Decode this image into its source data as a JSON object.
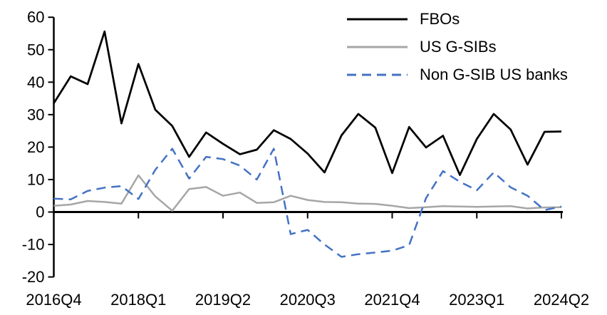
{
  "chart_data": {
    "type": "line",
    "title": "",
    "xlabel": "",
    "ylabel": "",
    "grid": false,
    "legend_position": "top-right",
    "ylim": [
      -20,
      60
    ],
    "y_ticks": [
      60,
      50,
      40,
      30,
      20,
      10,
      0,
      -10,
      -20
    ],
    "x_tick_labels": [
      "2016Q4",
      "2018Q1",
      "2019Q2",
      "2020Q3",
      "2021Q4",
      "2023Q1",
      "2024Q2"
    ],
    "x_tick_positions": [
      0,
      5,
      10,
      15,
      20,
      25,
      30
    ],
    "categories": [
      "2016Q4",
      "2017Q1",
      "2017Q2",
      "2017Q3",
      "2017Q4",
      "2018Q1",
      "2018Q2",
      "2018Q3",
      "2018Q4",
      "2019Q1",
      "2019Q2",
      "2019Q3",
      "2019Q4",
      "2020Q1",
      "2020Q2",
      "2020Q3",
      "2020Q4",
      "2021Q1",
      "2021Q2",
      "2021Q3",
      "2021Q4",
      "2022Q1",
      "2022Q2",
      "2022Q3",
      "2022Q4",
      "2023Q1",
      "2023Q2",
      "2023Q3",
      "2023Q4",
      "2024Q1",
      "2024Q2"
    ],
    "series": [
      {
        "name": "FBOs",
        "color": "#000000",
        "line_style": "solid",
        "line_width": 2.75,
        "values": [
          33.5,
          41.8,
          39.4,
          55.6,
          27.3,
          45.6,
          31.5,
          26.5,
          17.0,
          24.5,
          21.0,
          17.8,
          19.2,
          25.2,
          22.5,
          18.0,
          12.2,
          23.6,
          30.2,
          26.0,
          12.0,
          26.2,
          19.9,
          23.5,
          11.4,
          22.5,
          30.2,
          25.4,
          14.6,
          24.7,
          24.8
        ]
      },
      {
        "name": "US G-SIBs",
        "color": "#a6a6a6",
        "line_style": "solid",
        "line_width": 2.5,
        "values": [
          1.9,
          2.3,
          3.4,
          3.1,
          2.6,
          11.3,
          4.8,
          0.4,
          7.1,
          7.7,
          5.0,
          6.0,
          2.8,
          3.0,
          5.0,
          3.7,
          3.1,
          3.0,
          2.6,
          2.5,
          1.9,
          1.2,
          1.5,
          1.8,
          1.7,
          1.6,
          1.7,
          1.8,
          1.1,
          1.4,
          1.5
        ]
      },
      {
        "name": "Non G-SIB US banks",
        "color": "#4472c4",
        "line_style": "dashed",
        "line_width": 2.5,
        "values": [
          4.1,
          3.9,
          6.5,
          7.5,
          8.0,
          4.0,
          13.0,
          19.5,
          10.3,
          17.0,
          16.3,
          14.3,
          10.0,
          19.5,
          -6.8,
          -5.5,
          -10.0,
          -13.8,
          -13.0,
          -12.5,
          -11.9,
          -10.2,
          4.3,
          12.6,
          9.3,
          6.7,
          12.2,
          7.6,
          5.0,
          0.6,
          1.7
        ]
      }
    ],
    "axis_color": "#000000"
  }
}
